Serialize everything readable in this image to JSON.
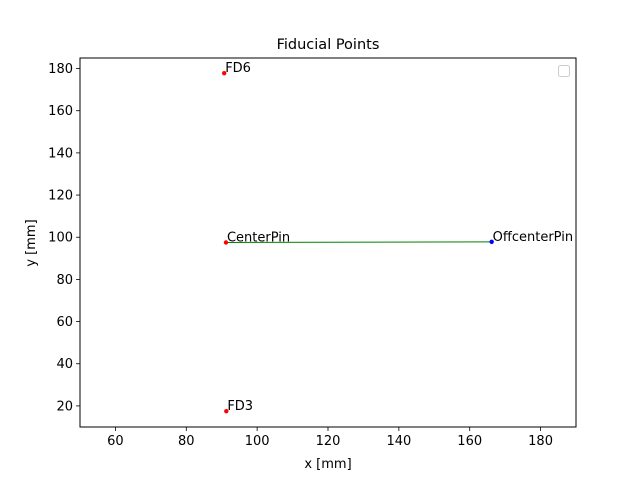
{
  "chart_data": {
    "type": "scatter",
    "title": "Fiducial Points",
    "xlabel": "x [mm]",
    "ylabel": "y [mm]",
    "xlim": [
      50,
      190
    ],
    "ylim": [
      10,
      185
    ],
    "xticks": [
      "60",
      "80",
      "100",
      "120",
      "140",
      "160",
      "180"
    ],
    "yticks": [
      "20",
      "40",
      "60",
      "80",
      "100",
      "120",
      "140",
      "160",
      "180"
    ],
    "grid": false,
    "legend": "top-right",
    "points": [
      {
        "label": "FD6",
        "x": 90.7,
        "y": 177.8,
        "color": "#ff0000"
      },
      {
        "label": "CenterPin",
        "x": 91.2,
        "y": 97.5,
        "color": "#ff0000"
      },
      {
        "label": "OffcenterPin",
        "x": 166.2,
        "y": 97.8,
        "color": "#0000ff"
      },
      {
        "label": "FD3",
        "x": 91.3,
        "y": 17.5,
        "color": "#ff0000"
      }
    ],
    "line": {
      "x": [
        91.2,
        166.2
      ],
      "y": [
        97.5,
        97.8
      ],
      "color": "#008000"
    }
  }
}
